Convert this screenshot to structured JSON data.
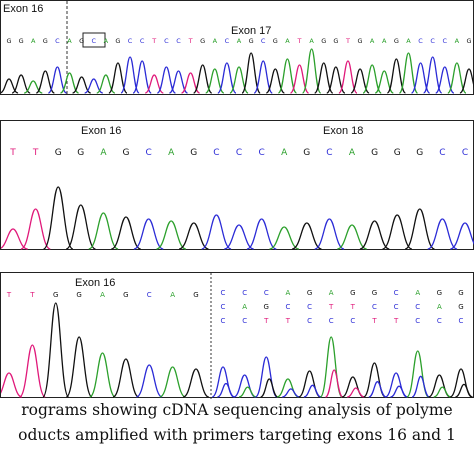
{
  "panel_a": {
    "exon_left": "Exon 16",
    "exon_right": "Exon 17",
    "bases": [
      "G",
      "G",
      "A",
      "G",
      "C",
      "A",
      "G",
      "C",
      "A",
      "G",
      "C",
      "C",
      "T",
      "C",
      "C",
      "T",
      "G",
      "A",
      "C",
      "A",
      "G",
      "C",
      "G",
      "A",
      "T",
      "A",
      "G",
      "G",
      "T",
      "G",
      "A",
      "A",
      "G",
      "A",
      "C",
      "C",
      "C",
      "A",
      "G"
    ]
  },
  "panel_b": {
    "exon_left": "Exon 16",
    "exon_right": "Exon 18",
    "bases": [
      "T",
      "T",
      "G",
      "G",
      "A",
      "G",
      "C",
      "A",
      "G",
      "C",
      "C",
      "C",
      "A",
      "G",
      "C",
      "A",
      "G",
      "G",
      "G",
      "C",
      "C"
    ]
  },
  "panel_c": {
    "exon_left": "Exon 16",
    "bases_left": [
      "T",
      "T",
      "G",
      "G",
      "A",
      "G",
      "C",
      "A",
      "G"
    ],
    "rows_right": [
      [
        "C",
        "C",
        "C",
        "A",
        "G",
        "A",
        "G",
        "G",
        "C",
        "A",
        "G",
        "G"
      ],
      [
        "C",
        "A",
        "G",
        "C",
        "C",
        "T",
        "T",
        "C",
        "C",
        "C",
        "A",
        "G"
      ],
      [
        "C",
        "C",
        "T",
        "T",
        "C",
        "C",
        "C",
        "T",
        "T",
        "C",
        "C",
        "C"
      ]
    ]
  },
  "caption": {
    "line1": "rograms showing cDNA sequencing analysis of polyme",
    "line2": "oducts amplified with primers targeting exons 16 and 1"
  },
  "colors": {
    "A": "#2ca02c",
    "C": "#2b2bd6",
    "G": "#111111",
    "T": "#e0197a"
  }
}
